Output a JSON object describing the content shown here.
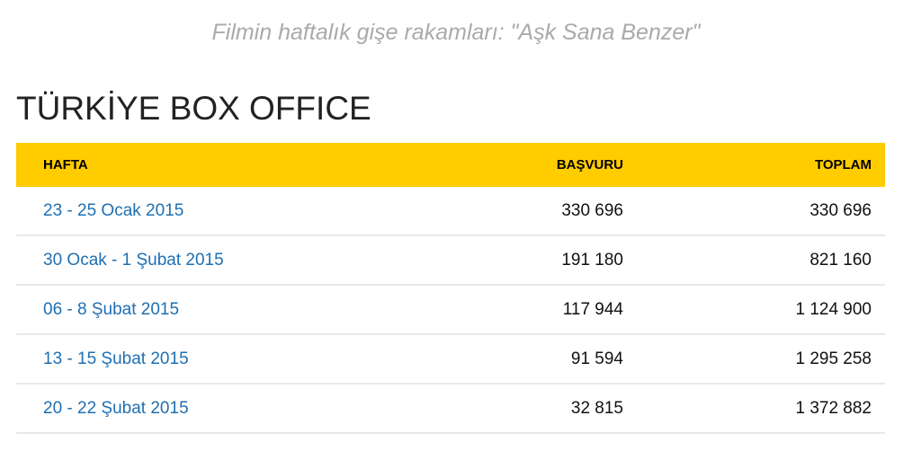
{
  "caption": "Filmin haftalık gişe rakamları: \"Aşk Sana Benzer\"",
  "title": "TÜRKİYE BOX OFFICE",
  "headers": [
    "HAFTA",
    "BAŞVURU",
    "TOPLAM"
  ],
  "rows": [
    [
      "23 - 25 Ocak 2015",
      "330 696",
      "330 696"
    ],
    [
      "30 Ocak - 1 Şubat 2015",
      "191 180",
      "821 160"
    ],
    [
      "06 - 8 Şubat 2015",
      "117 944",
      "1 124 900"
    ],
    [
      "13 - 15 Şubat 2015",
      "91 594",
      "1 295 258"
    ],
    [
      "20 - 22 Şubat 2015",
      "32 815",
      "1 372 882"
    ]
  ],
  "colors": {
    "header_bg": "#ffcc00",
    "link": "#1f6fb2"
  }
}
